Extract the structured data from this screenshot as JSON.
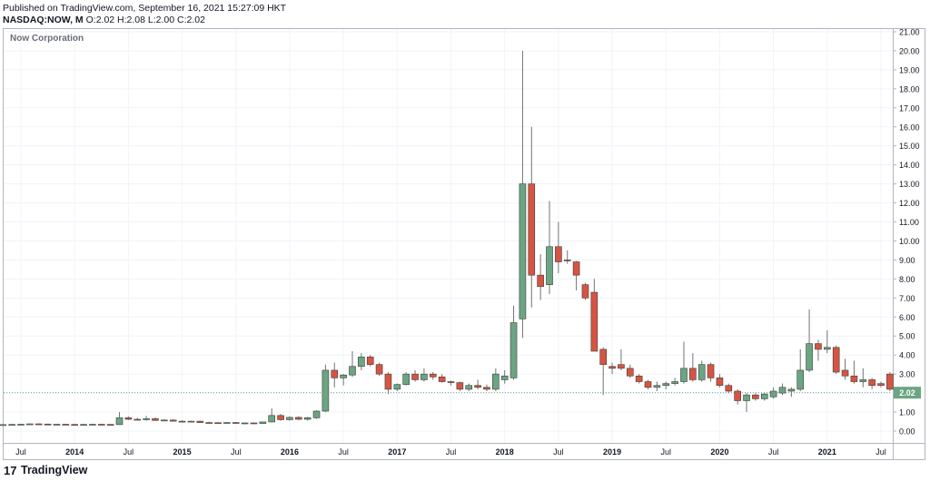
{
  "header": {
    "published": "Published on TradingView.com, September 16, 2021 15:27:09 HKT",
    "symbol": "NASDAQ:NOW, M",
    "ohlc_o_label": "O:",
    "ohlc_o": "2.02",
    "ohlc_h_label": "H:",
    "ohlc_h": "2.08",
    "ohlc_l_label": "L:",
    "ohlc_l": "2.00",
    "ohlc_c_label": "C:",
    "ohlc_c": "2.02"
  },
  "brand": {
    "name": "TradingView",
    "logo_text": "17"
  },
  "colors": {
    "up": "#6ba583",
    "down": "#d75442",
    "wick": "#737375",
    "grid": "#f0f3fa",
    "last_price_line": "#6ba583",
    "last_price_label_bg": "#6ba583"
  },
  "chart_data": {
    "type": "candlestick",
    "title": "Now Corporation",
    "interval": "1M",
    "ylim": [
      0,
      21
    ],
    "y_ticks": [
      "0.00",
      "1.00",
      "2.00",
      "3.00",
      "4.00",
      "5.00",
      "6.00",
      "7.00",
      "8.00",
      "9.00",
      "10.00",
      "11.00",
      "12.00",
      "13.00",
      "14.00",
      "15.00",
      "16.00",
      "17.00",
      "18.00",
      "19.00",
      "20.00",
      "21.00"
    ],
    "x_ticks": [
      {
        "label": "Jul",
        "date": "2013-07"
      },
      {
        "label": "2014",
        "date": "2014-01"
      },
      {
        "label": "Jul",
        "date": "2014-07"
      },
      {
        "label": "2015",
        "date": "2015-01"
      },
      {
        "label": "Jul",
        "date": "2015-07"
      },
      {
        "label": "2016",
        "date": "2016-01"
      },
      {
        "label": "Jul",
        "date": "2016-07"
      },
      {
        "label": "2017",
        "date": "2017-01"
      },
      {
        "label": "Jul",
        "date": "2017-07"
      },
      {
        "label": "2018",
        "date": "2018-01"
      },
      {
        "label": "Jul",
        "date": "2018-07"
      },
      {
        "label": "2019",
        "date": "2019-01"
      },
      {
        "label": "Jul",
        "date": "2019-07"
      },
      {
        "label": "2020",
        "date": "2020-01"
      },
      {
        "label": "Jul",
        "date": "2020-07"
      },
      {
        "label": "2021",
        "date": "2021-01"
      },
      {
        "label": "Jul",
        "date": "2021-07"
      }
    ],
    "last_price": "2.02",
    "candles": [
      {
        "d": "2013-05",
        "o": 0.33,
        "h": 0.36,
        "l": 0.31,
        "c": 0.34
      },
      {
        "d": "2013-06",
        "o": 0.34,
        "h": 0.37,
        "l": 0.32,
        "c": 0.35
      },
      {
        "d": "2013-07",
        "o": 0.35,
        "h": 0.38,
        "l": 0.33,
        "c": 0.36
      },
      {
        "d": "2013-08",
        "o": 0.36,
        "h": 0.4,
        "l": 0.34,
        "c": 0.38
      },
      {
        "d": "2013-09",
        "o": 0.38,
        "h": 0.41,
        "l": 0.35,
        "c": 0.37
      },
      {
        "d": "2013-10",
        "o": 0.37,
        "h": 0.39,
        "l": 0.33,
        "c": 0.35
      },
      {
        "d": "2013-11",
        "o": 0.35,
        "h": 0.38,
        "l": 0.32,
        "c": 0.36
      },
      {
        "d": "2013-12",
        "o": 0.36,
        "h": 0.38,
        "l": 0.33,
        "c": 0.35
      },
      {
        "d": "2014-01",
        "o": 0.35,
        "h": 0.37,
        "l": 0.32,
        "c": 0.34
      },
      {
        "d": "2014-02",
        "o": 0.34,
        "h": 0.37,
        "l": 0.32,
        "c": 0.35
      },
      {
        "d": "2014-03",
        "o": 0.35,
        "h": 0.38,
        "l": 0.33,
        "c": 0.36
      },
      {
        "d": "2014-04",
        "o": 0.36,
        "h": 0.38,
        "l": 0.33,
        "c": 0.35
      },
      {
        "d": "2014-05",
        "o": 0.35,
        "h": 0.37,
        "l": 0.32,
        "c": 0.34
      },
      {
        "d": "2014-06",
        "o": 0.34,
        "h": 1.0,
        "l": 0.33,
        "c": 0.7
      },
      {
        "d": "2014-07",
        "o": 0.7,
        "h": 0.78,
        "l": 0.58,
        "c": 0.62
      },
      {
        "d": "2014-08",
        "o": 0.62,
        "h": 0.7,
        "l": 0.56,
        "c": 0.6
      },
      {
        "d": "2014-09",
        "o": 0.6,
        "h": 0.8,
        "l": 0.55,
        "c": 0.65
      },
      {
        "d": "2014-10",
        "o": 0.65,
        "h": 0.72,
        "l": 0.54,
        "c": 0.56
      },
      {
        "d": "2014-11",
        "o": 0.56,
        "h": 0.62,
        "l": 0.52,
        "c": 0.58
      },
      {
        "d": "2014-12",
        "o": 0.58,
        "h": 0.62,
        "l": 0.5,
        "c": 0.52
      },
      {
        "d": "2015-01",
        "o": 0.52,
        "h": 0.56,
        "l": 0.48,
        "c": 0.5
      },
      {
        "d": "2015-02",
        "o": 0.5,
        "h": 0.55,
        "l": 0.47,
        "c": 0.52
      },
      {
        "d": "2015-03",
        "o": 0.52,
        "h": 0.55,
        "l": 0.44,
        "c": 0.45
      },
      {
        "d": "2015-04",
        "o": 0.45,
        "h": 0.49,
        "l": 0.42,
        "c": 0.44
      },
      {
        "d": "2015-05",
        "o": 0.44,
        "h": 0.47,
        "l": 0.4,
        "c": 0.42
      },
      {
        "d": "2015-06",
        "o": 0.42,
        "h": 0.47,
        "l": 0.39,
        "c": 0.45
      },
      {
        "d": "2015-07",
        "o": 0.45,
        "h": 0.48,
        "l": 0.4,
        "c": 0.41
      },
      {
        "d": "2015-08",
        "o": 0.41,
        "h": 0.45,
        "l": 0.36,
        "c": 0.43
      },
      {
        "d": "2015-09",
        "o": 0.43,
        "h": 0.46,
        "l": 0.38,
        "c": 0.4
      },
      {
        "d": "2015-10",
        "o": 0.4,
        "h": 0.5,
        "l": 0.38,
        "c": 0.48
      },
      {
        "d": "2015-11",
        "o": 0.48,
        "h": 1.2,
        "l": 0.46,
        "c": 0.82
      },
      {
        "d": "2015-12",
        "o": 0.82,
        "h": 0.9,
        "l": 0.55,
        "c": 0.6
      },
      {
        "d": "2016-01",
        "o": 0.6,
        "h": 0.78,
        "l": 0.55,
        "c": 0.72
      },
      {
        "d": "2016-02",
        "o": 0.72,
        "h": 0.78,
        "l": 0.58,
        "c": 0.62
      },
      {
        "d": "2016-03",
        "o": 0.62,
        "h": 0.75,
        "l": 0.55,
        "c": 0.7
      },
      {
        "d": "2016-04",
        "o": 0.7,
        "h": 1.1,
        "l": 0.65,
        "c": 1.05
      },
      {
        "d": "2016-05",
        "o": 1.05,
        "h": 3.5,
        "l": 1.0,
        "c": 3.2
      },
      {
        "d": "2016-06",
        "o": 3.2,
        "h": 3.6,
        "l": 2.3,
        "c": 2.8
      },
      {
        "d": "2016-07",
        "o": 2.8,
        "h": 3.0,
        "l": 2.4,
        "c": 2.95
      },
      {
        "d": "2016-08",
        "o": 2.95,
        "h": 4.2,
        "l": 2.85,
        "c": 3.4
      },
      {
        "d": "2016-09",
        "o": 3.4,
        "h": 4.1,
        "l": 3.2,
        "c": 3.9
      },
      {
        "d": "2016-10",
        "o": 3.9,
        "h": 4.0,
        "l": 3.4,
        "c": 3.5
      },
      {
        "d": "2016-11",
        "o": 3.5,
        "h": 3.6,
        "l": 2.9,
        "c": 3.0
      },
      {
        "d": "2016-12",
        "o": 3.0,
        "h": 3.1,
        "l": 1.95,
        "c": 2.2
      },
      {
        "d": "2017-01",
        "o": 2.2,
        "h": 2.5,
        "l": 2.1,
        "c": 2.45
      },
      {
        "d": "2017-02",
        "o": 2.45,
        "h": 3.1,
        "l": 2.4,
        "c": 3.0
      },
      {
        "d": "2017-03",
        "o": 3.0,
        "h": 3.2,
        "l": 2.6,
        "c": 2.7
      },
      {
        "d": "2017-04",
        "o": 2.7,
        "h": 3.3,
        "l": 2.6,
        "c": 3.0
      },
      {
        "d": "2017-05",
        "o": 3.0,
        "h": 3.1,
        "l": 2.7,
        "c": 2.85
      },
      {
        "d": "2017-06",
        "o": 2.85,
        "h": 3.0,
        "l": 2.55,
        "c": 2.6
      },
      {
        "d": "2017-07",
        "o": 2.6,
        "h": 2.65,
        "l": 2.4,
        "c": 2.55
      },
      {
        "d": "2017-08",
        "o": 2.55,
        "h": 2.6,
        "l": 2.1,
        "c": 2.2
      },
      {
        "d": "2017-09",
        "o": 2.2,
        "h": 2.5,
        "l": 2.1,
        "c": 2.4
      },
      {
        "d": "2017-10",
        "o": 2.4,
        "h": 2.7,
        "l": 2.2,
        "c": 2.3
      },
      {
        "d": "2017-11",
        "o": 2.3,
        "h": 2.45,
        "l": 2.1,
        "c": 2.2
      },
      {
        "d": "2017-12",
        "o": 2.2,
        "h": 3.3,
        "l": 2.1,
        "c": 3.0
      },
      {
        "d": "2018-01",
        "o": 2.7,
        "h": 3.2,
        "l": 2.5,
        "c": 2.9
      },
      {
        "d": "2018-02",
        "o": 2.8,
        "h": 6.6,
        "l": 2.7,
        "c": 5.7
      },
      {
        "d": "2018-03",
        "o": 5.9,
        "h": 20.0,
        "l": 4.9,
        "c": 13.0
      },
      {
        "d": "2018-04",
        "o": 13.0,
        "h": 16.0,
        "l": 6.5,
        "c": 8.2
      },
      {
        "d": "2018-05",
        "o": 8.2,
        "h": 9.3,
        "l": 6.9,
        "c": 7.6
      },
      {
        "d": "2018-06",
        "o": 7.7,
        "h": 12.1,
        "l": 7.2,
        "c": 9.7
      },
      {
        "d": "2018-07",
        "o": 9.7,
        "h": 11.0,
        "l": 8.3,
        "c": 8.9
      },
      {
        "d": "2018-08",
        "o": 9.0,
        "h": 9.5,
        "l": 8.8,
        "c": 8.95
      },
      {
        "d": "2018-09",
        "o": 8.9,
        "h": 8.95,
        "l": 7.4,
        "c": 8.2
      },
      {
        "d": "2018-10",
        "o": 7.7,
        "h": 7.8,
        "l": 6.9,
        "c": 7.0
      },
      {
        "d": "2018-11",
        "o": 7.3,
        "h": 8.0,
        "l": 4.2,
        "c": 4.2
      },
      {
        "d": "2018-12",
        "o": 4.3,
        "h": 4.4,
        "l": 1.9,
        "c": 3.5
      },
      {
        "d": "2019-01",
        "o": 3.4,
        "h": 3.6,
        "l": 3.0,
        "c": 3.3
      },
      {
        "d": "2019-02",
        "o": 3.5,
        "h": 4.3,
        "l": 3.2,
        "c": 3.3
      },
      {
        "d": "2019-03",
        "o": 3.3,
        "h": 3.5,
        "l": 2.8,
        "c": 2.9
      },
      {
        "d": "2019-04",
        "o": 2.9,
        "h": 3.0,
        "l": 2.5,
        "c": 2.6
      },
      {
        "d": "2019-05",
        "o": 2.6,
        "h": 2.7,
        "l": 2.2,
        "c": 2.3
      },
      {
        "d": "2019-06",
        "o": 2.3,
        "h": 2.6,
        "l": 2.1,
        "c": 2.4
      },
      {
        "d": "2019-07",
        "o": 2.4,
        "h": 2.6,
        "l": 2.2,
        "c": 2.5
      },
      {
        "d": "2019-08",
        "o": 2.5,
        "h": 2.8,
        "l": 2.4,
        "c": 2.6
      },
      {
        "d": "2019-09",
        "o": 2.6,
        "h": 4.7,
        "l": 2.5,
        "c": 3.3
      },
      {
        "d": "2019-10",
        "o": 3.3,
        "h": 4.1,
        "l": 2.6,
        "c": 2.7
      },
      {
        "d": "2019-11",
        "o": 2.7,
        "h": 3.7,
        "l": 2.6,
        "c": 3.5
      },
      {
        "d": "2019-12",
        "o": 3.5,
        "h": 3.6,
        "l": 2.6,
        "c": 2.8
      },
      {
        "d": "2020-01",
        "o": 2.8,
        "h": 3.0,
        "l": 2.3,
        "c": 2.4
      },
      {
        "d": "2020-02",
        "o": 2.4,
        "h": 2.5,
        "l": 2.0,
        "c": 2.1
      },
      {
        "d": "2020-03",
        "o": 2.1,
        "h": 2.2,
        "l": 1.4,
        "c": 1.6
      },
      {
        "d": "2020-04",
        "o": 1.6,
        "h": 2.0,
        "l": 1.0,
        "c": 1.9
      },
      {
        "d": "2020-05",
        "o": 1.9,
        "h": 2.0,
        "l": 1.6,
        "c": 1.7
      },
      {
        "d": "2020-06",
        "o": 1.7,
        "h": 2.0,
        "l": 1.6,
        "c": 1.95
      },
      {
        "d": "2020-07",
        "o": 1.8,
        "h": 2.3,
        "l": 1.7,
        "c": 2.1
      },
      {
        "d": "2020-08",
        "o": 2.0,
        "h": 2.5,
        "l": 1.9,
        "c": 2.3
      },
      {
        "d": "2020-09",
        "o": 2.1,
        "h": 2.3,
        "l": 1.8,
        "c": 2.2
      },
      {
        "d": "2020-10",
        "o": 2.2,
        "h": 4.3,
        "l": 2.1,
        "c": 3.2
      },
      {
        "d": "2020-11",
        "o": 3.2,
        "h": 6.4,
        "l": 3.1,
        "c": 4.6
      },
      {
        "d": "2020-12",
        "o": 4.6,
        "h": 4.8,
        "l": 3.7,
        "c": 4.3
      },
      {
        "d": "2021-01",
        "o": 4.3,
        "h": 5.3,
        "l": 4.1,
        "c": 4.4
      },
      {
        "d": "2021-02",
        "o": 4.4,
        "h": 4.5,
        "l": 3.0,
        "c": 3.1
      },
      {
        "d": "2021-03",
        "o": 3.2,
        "h": 3.8,
        "l": 2.7,
        "c": 2.9
      },
      {
        "d": "2021-04",
        "o": 2.9,
        "h": 3.7,
        "l": 2.5,
        "c": 2.6
      },
      {
        "d": "2021-05",
        "o": 2.6,
        "h": 3.3,
        "l": 2.3,
        "c": 2.7
      },
      {
        "d": "2021-06",
        "o": 2.7,
        "h": 2.8,
        "l": 2.2,
        "c": 2.4
      },
      {
        "d": "2021-07",
        "o": 2.5,
        "h": 2.6,
        "l": 2.3,
        "c": 2.4
      },
      {
        "d": "2021-08",
        "o": 3.0,
        "h": 3.1,
        "l": 2.1,
        "c": 2.2
      },
      {
        "d": "2021-09",
        "o": 2.02,
        "h": 2.08,
        "l": 2.0,
        "c": 2.02
      }
    ]
  }
}
